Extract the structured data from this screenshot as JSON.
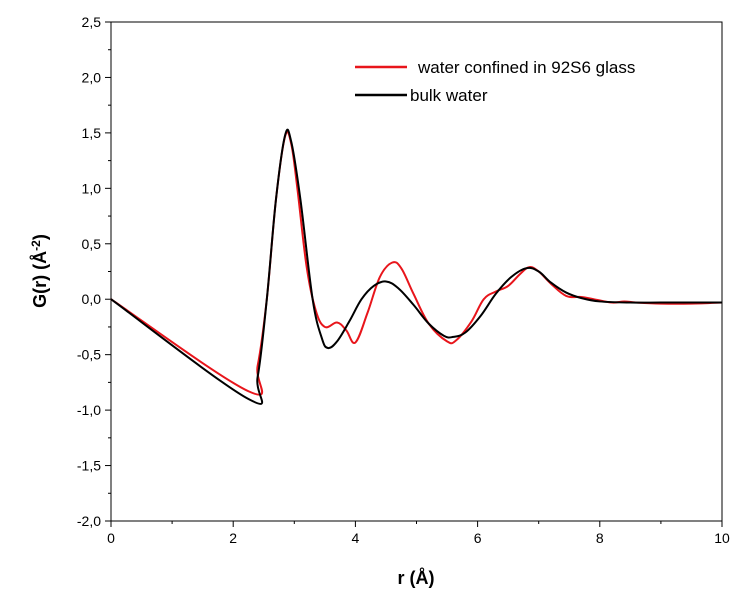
{
  "chart_data": {
    "type": "line",
    "xlabel": "r (Å)",
    "ylabel_main": "G(r) (Å",
    "ylabel_sup": "-2",
    "ylabel_close": ")",
    "xlim": [
      0,
      10
    ],
    "ylim": [
      -2.0,
      2.5
    ],
    "x_ticks": [
      0,
      2,
      4,
      6,
      8,
      10
    ],
    "x_tick_labels": [
      "0",
      "2",
      "4",
      "6",
      "8",
      "10"
    ],
    "y_ticks": [
      -2.0,
      -1.5,
      -1.0,
      -0.5,
      0.0,
      0.5,
      1.0,
      1.5,
      2.0,
      2.5
    ],
    "y_tick_labels": [
      "-2,0",
      "-1,5",
      "-1,0",
      "-0,5",
      "0,0",
      "0,5",
      "1,0",
      "1,5",
      "2,0",
      "2,5"
    ],
    "grid": false,
    "legend_position": "top-right",
    "series": [
      {
        "name": "water confined in 92S6 glass",
        "color": "#e8151b",
        "points": [
          [
            0,
            0
          ],
          [
            2.25,
            -0.83
          ],
          [
            2.4,
            -0.6
          ],
          [
            2.55,
            0.0
          ],
          [
            2.7,
            0.9
          ],
          [
            2.85,
            1.47
          ],
          [
            2.95,
            1.4
          ],
          [
            3.05,
            1.0
          ],
          [
            3.2,
            0.3
          ],
          [
            3.35,
            -0.1
          ],
          [
            3.5,
            -0.25
          ],
          [
            3.7,
            -0.21
          ],
          [
            3.85,
            -0.28
          ],
          [
            4.0,
            -0.39
          ],
          [
            4.2,
            -0.12
          ],
          [
            4.4,
            0.2
          ],
          [
            4.6,
            0.33
          ],
          [
            4.75,
            0.28
          ],
          [
            4.95,
            0.05
          ],
          [
            5.2,
            -0.22
          ],
          [
            5.5,
            -0.38
          ],
          [
            5.65,
            -0.37
          ],
          [
            5.9,
            -0.2
          ],
          [
            6.1,
            0.0
          ],
          [
            6.3,
            0.07
          ],
          [
            6.5,
            0.12
          ],
          [
            6.7,
            0.23
          ],
          [
            6.85,
            0.29
          ],
          [
            7.0,
            0.25
          ],
          [
            7.2,
            0.14
          ],
          [
            7.45,
            0.03
          ],
          [
            7.7,
            0.02
          ],
          [
            7.9,
            0.0
          ],
          [
            8.2,
            -0.03
          ],
          [
            8.4,
            -0.02
          ],
          [
            8.6,
            -0.03
          ],
          [
            9.0,
            -0.04
          ],
          [
            9.5,
            -0.04
          ],
          [
            10,
            -0.03
          ]
        ]
      },
      {
        "name": "bulk water",
        "color": "#000000",
        "points": [
          [
            0,
            0
          ],
          [
            2.25,
            -0.9
          ],
          [
            2.4,
            -0.7
          ],
          [
            2.55,
            0.0
          ],
          [
            2.7,
            0.9
          ],
          [
            2.85,
            1.48
          ],
          [
            2.95,
            1.42
          ],
          [
            3.1,
            0.9
          ],
          [
            3.3,
            0.0
          ],
          [
            3.45,
            -0.35
          ],
          [
            3.55,
            -0.44
          ],
          [
            3.7,
            -0.38
          ],
          [
            3.9,
            -0.2
          ],
          [
            4.1,
            0.0
          ],
          [
            4.3,
            0.12
          ],
          [
            4.5,
            0.16
          ],
          [
            4.7,
            0.1
          ],
          [
            4.95,
            -0.05
          ],
          [
            5.2,
            -0.22
          ],
          [
            5.45,
            -0.33
          ],
          [
            5.6,
            -0.34
          ],
          [
            5.8,
            -0.3
          ],
          [
            6.05,
            -0.15
          ],
          [
            6.3,
            0.05
          ],
          [
            6.55,
            0.2
          ],
          [
            6.8,
            0.28
          ],
          [
            7.0,
            0.25
          ],
          [
            7.2,
            0.15
          ],
          [
            7.45,
            0.06
          ],
          [
            7.7,
            0.01
          ],
          [
            8.0,
            -0.02
          ],
          [
            8.5,
            -0.03
          ],
          [
            9.0,
            -0.03
          ],
          [
            9.5,
            -0.03
          ],
          [
            10,
            -0.03
          ]
        ]
      }
    ]
  }
}
